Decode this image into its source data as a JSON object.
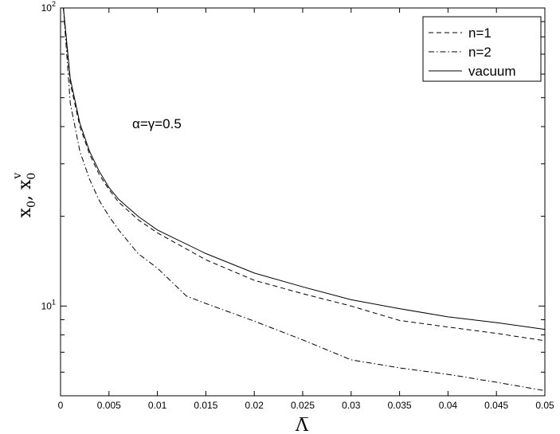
{
  "chart_data": {
    "type": "line",
    "title": "",
    "xlabel": "Λ̅",
    "ylabel_main": "x",
    "ylabel_sub": "0",
    "ylabel_sep": ", ",
    "ylabel_main2": "x",
    "ylabel_sub2": "0",
    "ylabel_sup2": "v",
    "xlim": [
      0,
      0.05
    ],
    "ylim": [
      5,
      100
    ],
    "yscale": "log",
    "grid": false,
    "legend_position": "top-right",
    "x_ticks": [
      0,
      0.005,
      0.01,
      0.015,
      0.02,
      0.025,
      0.03,
      0.035,
      0.04,
      0.045,
      0.05
    ],
    "x_tick_labels": [
      "0",
      "0.005",
      "0.01",
      "0.015",
      "0.02",
      "0.025",
      "0.03",
      "0.035",
      "0.04",
      "0.045",
      "0.05"
    ],
    "y_major_ticks": [
      {
        "value": 10,
        "base": "10",
        "exp": "1"
      },
      {
        "value": 100,
        "base": "10",
        "exp": "2"
      }
    ],
    "annotation": "α=γ=0.5",
    "series": [
      {
        "name": "n=1",
        "style": "dashed",
        "x": [
          0.0003,
          0.001,
          0.002,
          0.003,
          0.004,
          0.005,
          0.006,
          0.008,
          0.01,
          0.015,
          0.02,
          0.025,
          0.03,
          0.035,
          0.04,
          0.045,
          0.05
        ],
        "y": [
          100,
          56,
          40,
          32.3,
          27.6,
          24.6,
          22.3,
          19.5,
          17.6,
          14.3,
          12.2,
          11.0,
          10.0,
          8.95,
          8.5,
          8.1,
          7.65
        ]
      },
      {
        "name": "n=2",
        "style": "dashdot",
        "x": [
          0.0003,
          0.001,
          0.002,
          0.003,
          0.004,
          0.005,
          0.006,
          0.008,
          0.01,
          0.013,
          0.015,
          0.02,
          0.025,
          0.03,
          0.035,
          0.04,
          0.045,
          0.05
        ],
        "y": [
          100,
          48,
          33,
          26.6,
          22.6,
          20.0,
          18.0,
          15.0,
          13.4,
          10.8,
          10.2,
          8.9,
          7.7,
          6.6,
          6.2,
          5.9,
          5.55,
          5.2
        ]
      },
      {
        "name": "vacuum",
        "style": "solid",
        "x": [
          0.0003,
          0.001,
          0.002,
          0.003,
          0.004,
          0.005,
          0.006,
          0.008,
          0.01,
          0.015,
          0.02,
          0.025,
          0.03,
          0.035,
          0.04,
          0.045,
          0.05
        ],
        "y": [
          100,
          58,
          41,
          33.0,
          28.3,
          25.0,
          22.8,
          20.0,
          18.0,
          15.0,
          12.9,
          11.6,
          10.5,
          9.8,
          9.2,
          8.8,
          8.35
        ]
      }
    ]
  }
}
